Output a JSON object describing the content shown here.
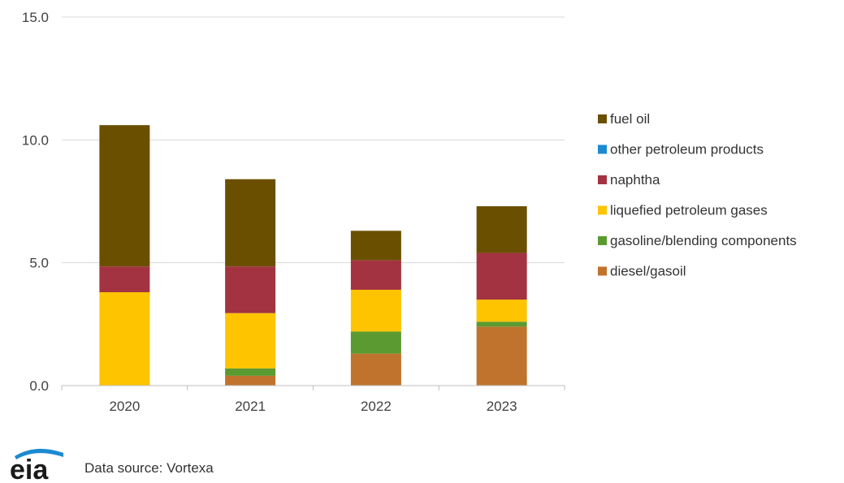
{
  "chart_data": {
    "type": "bar",
    "stacked": true,
    "categories": [
      "2020",
      "2021",
      "2022",
      "2023"
    ],
    "ylim": [
      0,
      15
    ],
    "yticks": [
      0,
      5,
      10,
      15
    ],
    "ytick_labels": [
      "0.0",
      "5.0",
      "10.0",
      "15.0"
    ],
    "grid": true,
    "legend_position": "right",
    "series": [
      {
        "name": "diesel/gasoil",
        "color": "#C0732C",
        "values": [
          0.0,
          0.4,
          1.3,
          2.4
        ]
      },
      {
        "name": "gasoline/blending components",
        "color": "#5B9A31",
        "values": [
          0.0,
          0.3,
          0.9,
          0.2
        ]
      },
      {
        "name": "liquefied petroleum gases",
        "color": "#FFC400",
        "values": [
          3.8,
          2.25,
          1.7,
          0.9
        ]
      },
      {
        "name": "naphtha",
        "color": "#A33340",
        "values": [
          1.05,
          1.9,
          1.2,
          1.9
        ]
      },
      {
        "name": "other petroleum products",
        "color": "#1B8AD0",
        "values": [
          0.0,
          0.0,
          0.0,
          0.0
        ]
      },
      {
        "name": "fuel oil",
        "color": "#6B4F00",
        "values": [
          5.75,
          3.55,
          1.2,
          1.9
        ]
      }
    ]
  },
  "footer": {
    "logo_text": "eia",
    "source": "Data source: Vortexa"
  }
}
